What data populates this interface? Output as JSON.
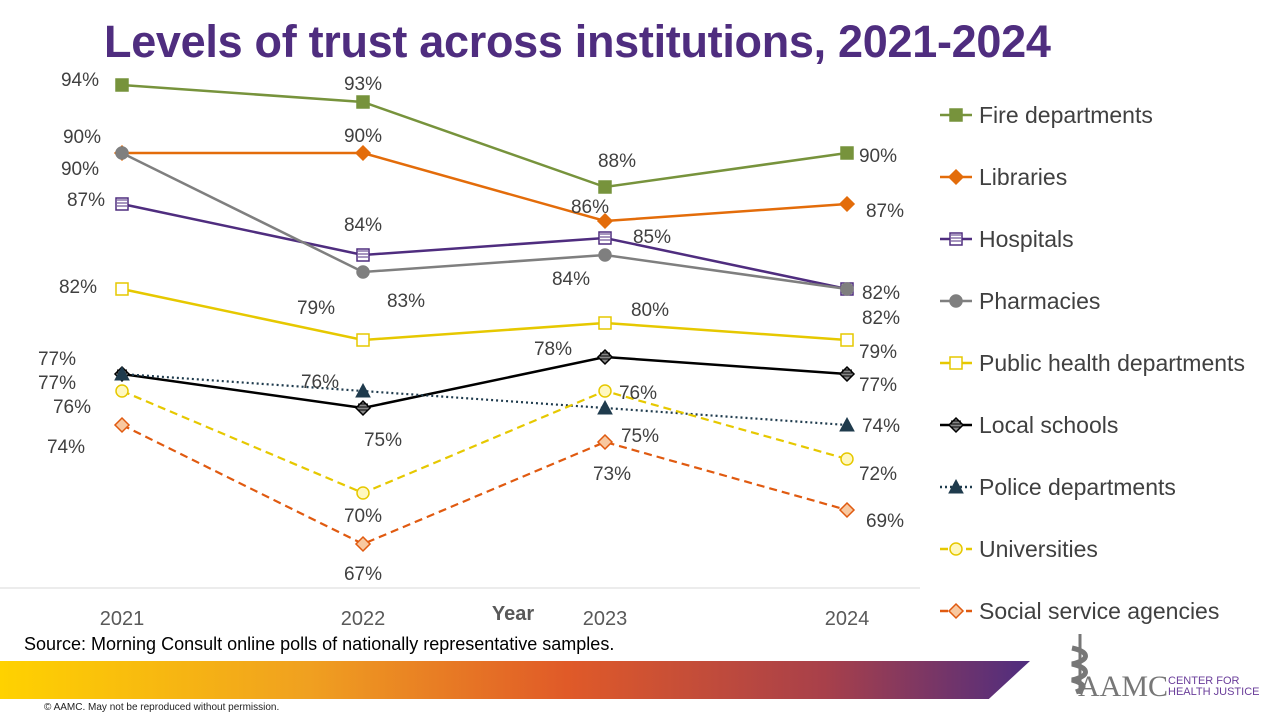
{
  "chart_data": {
    "type": "line",
    "title": "Levels of trust across institutions, 2021-2024",
    "xlabel": "Year",
    "ylabel": "",
    "categories": [
      "2021",
      "2022",
      "2023",
      "2024"
    ],
    "ylim": [
      67,
      94
    ],
    "grid": false,
    "legend_position": "right",
    "series": [
      {
        "name": "Fire departments",
        "values": [
          94,
          93,
          88,
          90
        ],
        "color": "#77933c",
        "marker": "square",
        "dash": "solid"
      },
      {
        "name": "Libraries",
        "values": [
          90,
          90,
          86,
          87
        ],
        "color": "#e36c0a",
        "marker": "diamond",
        "dash": "solid"
      },
      {
        "name": "Hospitals",
        "values": [
          87,
          84,
          85,
          82
        ],
        "color": "#4f2d7f",
        "marker": "square-striped",
        "dash": "solid"
      },
      {
        "name": "Pharmacies",
        "values": [
          90,
          83,
          84,
          82
        ],
        "color": "#7f7f7f",
        "marker": "circle",
        "dash": "solid"
      },
      {
        "name": "Public health departments",
        "values": [
          82,
          79,
          80,
          79
        ],
        "color": "#e6c800",
        "marker": "square-checked",
        "dash": "solid"
      },
      {
        "name": "Local schools",
        "values": [
          77,
          75,
          78,
          77
        ],
        "color": "#000000",
        "marker": "diamond-striped",
        "dash": "solid"
      },
      {
        "name": "Police departments",
        "values": [
          77,
          76,
          75,
          74
        ],
        "color": "#1f3b4d",
        "marker": "triangle",
        "dash": "dotted"
      },
      {
        "name": "Universities",
        "values": [
          76,
          70,
          76,
          72
        ],
        "color": "#e6c800",
        "marker": "circle-checked",
        "dash": "dashed"
      },
      {
        "name": "Social service agencies",
        "values": [
          74,
          67,
          73,
          69
        ],
        "color": "#e05a10",
        "marker": "diamond-checked",
        "dash": "dashed"
      }
    ]
  },
  "source": "Source: Morning Consult online polls of nationally representative samples.",
  "copyright": "© AAMC. May not be reproduced without permission.",
  "logo": {
    "name": "AAMC",
    "line1": "CENTER FOR",
    "line2": "HEALTH JUSTICE"
  }
}
